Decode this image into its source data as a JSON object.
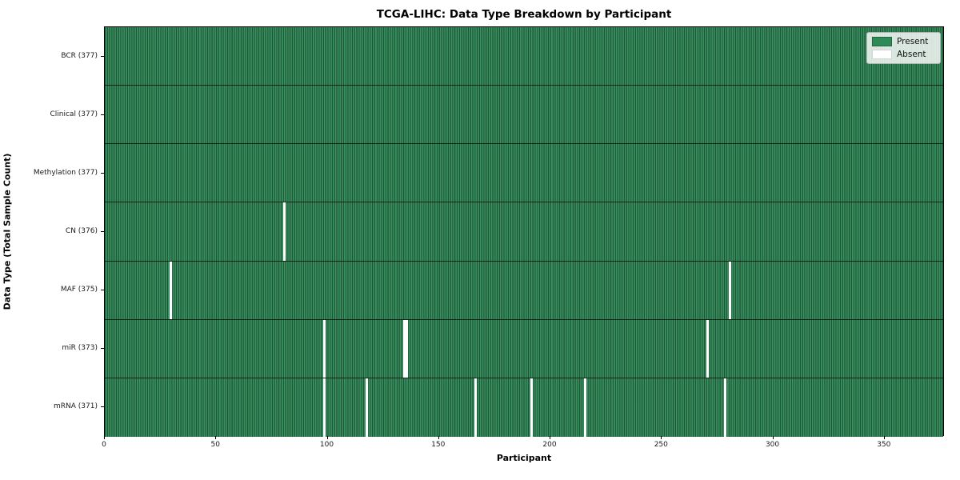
{
  "title": "TCGA-LIHC: Data Type Breakdown by Participant",
  "chart_data": {
    "type": "heatmap",
    "title": "TCGA-LIHC: Data Type Breakdown by Participant",
    "xlabel": "Participant",
    "ylabel": "Data Type (Total Sample Count)",
    "x_range": [
      0,
      377
    ],
    "n_participants": 377,
    "x_ticks": [
      0,
      50,
      100,
      150,
      200,
      250,
      300,
      350
    ],
    "grid": false,
    "legend_position": "upper right",
    "colors": {
      "present": "#2e8b57",
      "absent": "#ffffff",
      "row_divider": "#1a1a1a",
      "legend_bg": "#eef1ee"
    },
    "legend": [
      {
        "label": "Present",
        "color": "#2e8b57"
      },
      {
        "label": "Absent",
        "color": "#ffffff"
      }
    ],
    "rows": [
      {
        "label": "BCR (377)",
        "data_type": "BCR",
        "present_count": 377,
        "absent_participants": []
      },
      {
        "label": "Clinical (377)",
        "data_type": "Clinical",
        "present_count": 377,
        "absent_participants": []
      },
      {
        "label": "Methylation (377)",
        "data_type": "Methylation",
        "present_count": 377,
        "absent_participants": []
      },
      {
        "label": "CN (376)",
        "data_type": "CN",
        "present_count": 376,
        "absent_participants": [
          80
        ]
      },
      {
        "label": "MAF (375)",
        "data_type": "MAF",
        "present_count": 375,
        "absent_participants": [
          29,
          280
        ]
      },
      {
        "label": "miR (373)",
        "data_type": "miR",
        "present_count": 373,
        "absent_participants": [
          98,
          134,
          135,
          270
        ]
      },
      {
        "label": "mRNA (371)",
        "data_type": "mRNA",
        "present_count": 371,
        "absent_participants": [
          98,
          117,
          166,
          191,
          215,
          278
        ]
      }
    ]
  }
}
